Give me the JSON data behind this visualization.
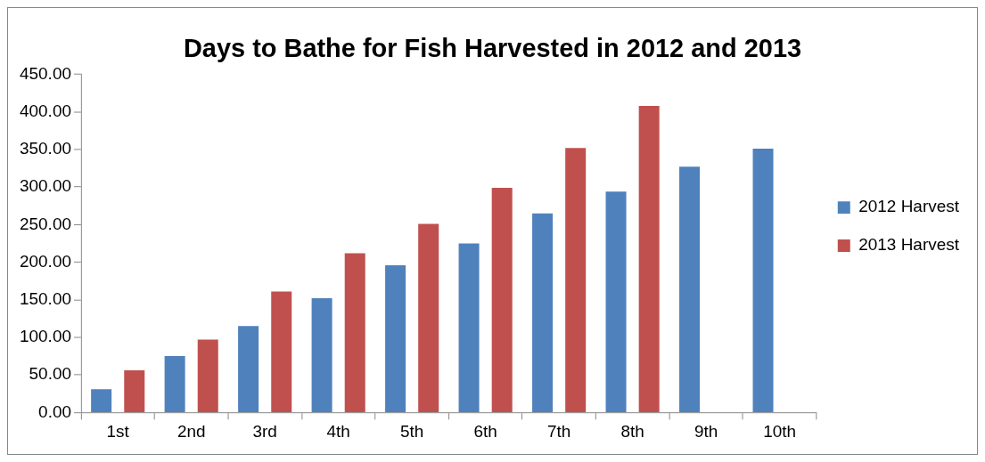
{
  "chart_data": {
    "type": "bar",
    "title": "Days to Bathe for Fish Harvested in 2012 and 2013",
    "categories": [
      "1st",
      "2nd",
      "3rd",
      "4th",
      "5th",
      "6th",
      "7th",
      "8th",
      "9th",
      "10th"
    ],
    "series": [
      {
        "name": "2012 Harvest",
        "color": "#4f81bd",
        "values": [
          31,
          75,
          115,
          152,
          196,
          225,
          265,
          294,
          327,
          351
        ]
      },
      {
        "name": "2013 Harvest",
        "color": "#c0504d",
        "values": [
          56,
          97,
          161,
          212,
          251,
          299,
          352,
          408,
          null,
          null
        ]
      }
    ],
    "ylim": [
      0,
      450
    ],
    "yticks": [
      {
        "value": 0,
        "label": "0.00"
      },
      {
        "value": 50,
        "label": "50.00"
      },
      {
        "value": 100,
        "label": "100.00"
      },
      {
        "value": 150,
        "label": "150.00"
      },
      {
        "value": 200,
        "label": "200.00"
      },
      {
        "value": 250,
        "label": "250.00"
      },
      {
        "value": 300,
        "label": "300.00"
      },
      {
        "value": 350,
        "label": "350.00"
      },
      {
        "value": 400,
        "label": "400.00"
      },
      {
        "value": 450,
        "label": "450.00"
      }
    ],
    "grid": false,
    "legend": "right"
  }
}
